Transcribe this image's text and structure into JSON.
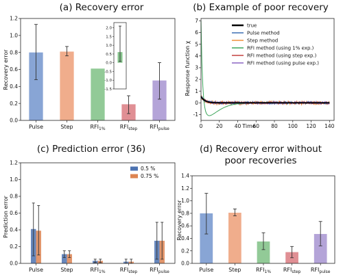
{
  "colors": {
    "pulse": "#7b9bd0",
    "step": "#eea47f",
    "rfi1": "#86c48c",
    "rfistep": "#dd8388",
    "rfipulse": "#ac9ad4",
    "true": "#000000",
    "line_pulse": "#3c6fb4",
    "line_step": "#ef8f3a",
    "line_rfi1": "#3ca55a",
    "line_rfistep": "#c4413f",
    "line_rfipulse": "#8a63c3",
    "pred_a": "#4c72b0",
    "pred_b": "#dd8452"
  },
  "categories": [
    {
      "main": "Pulse",
      "sub": ""
    },
    {
      "main": "Step",
      "sub": ""
    },
    {
      "main": "RFI",
      "sub": "1%"
    },
    {
      "main": "RFI",
      "sub": "step"
    },
    {
      "main": "RFI",
      "sub": "pulse"
    }
  ],
  "chart_data": [
    {
      "id": "a",
      "type": "bar",
      "title": "(a)   Recovery error",
      "ylabel": "Recovery error",
      "ylim": [
        0,
        1.2
      ],
      "yticks": [
        0.0,
        0.2,
        0.4,
        0.6,
        0.8,
        1.0,
        1.2
      ],
      "values": [
        0.8,
        0.81,
        0.61,
        0.19,
        0.47
      ],
      "err_low": [
        0.48,
        0.76,
        null,
        0.08,
        0.25
      ],
      "err_high": [
        1.13,
        0.87,
        null,
        0.29,
        0.68
      ],
      "grid": false,
      "inset": {
        "ylim": [
          -1.5,
          2.3
        ],
        "yticks": [
          -1.5,
          -1.0,
          -0.5,
          0.0,
          0.5,
          1.0,
          1.5,
          2.0
        ],
        "value": 0.61,
        "err_low": 0.08,
        "err_high": 2.1
      }
    },
    {
      "id": "b",
      "type": "line",
      "title": "(b)   Example of poor recovery",
      "xlabel": "Time",
      "ylabel": "Response function χ",
      "xlim": [
        0,
        145
      ],
      "ylim": [
        -1.5,
        7.2
      ],
      "xticks": [
        0,
        20,
        40,
        60,
        80,
        100,
        120,
        140
      ],
      "yticks": [
        -1,
        0,
        1,
        2,
        3,
        4,
        5,
        6,
        7
      ],
      "legend_position": "top-right",
      "series": [
        {
          "name": "true",
          "key": "true"
        },
        {
          "name": "Pulse method",
          "key": "line_pulse"
        },
        {
          "name": "Step method",
          "key": "line_step"
        },
        {
          "name": "RFI method (using 1% exp.)",
          "key": "line_rfi1"
        },
        {
          "name": "RFI method (using step exp.)",
          "key": "line_rfistep"
        },
        {
          "name": "RFI method (using pulse exp.)",
          "key": "line_rfipulse"
        }
      ]
    },
    {
      "id": "c",
      "type": "bar",
      "title": "(c)   Prediction error (36)",
      "ylabel": "Prediction error",
      "ylim": [
        0,
        1.2
      ],
      "yticks": [
        0.0,
        0.2,
        0.4,
        0.6,
        0.8,
        1.0,
        1.2
      ],
      "legend_position": "top-right",
      "series": [
        {
          "name": "0.5 %",
          "values": [
            0.41,
            0.11,
            0.03,
            0.02,
            0.27
          ],
          "err_low": [
            0.09,
            0.07,
            0.01,
            0.0,
            0.05
          ],
          "err_high": [
            0.72,
            0.15,
            0.05,
            0.05,
            0.49
          ]
        },
        {
          "name": "0.75 %",
          "values": [
            0.39,
            0.11,
            0.03,
            0.02,
            0.27
          ],
          "err_low": [
            0.1,
            0.07,
            0.01,
            0.0,
            0.05
          ],
          "err_high": [
            0.69,
            0.15,
            0.05,
            0.05,
            0.49
          ]
        }
      ],
      "grid": false
    },
    {
      "id": "d",
      "type": "bar",
      "title_lines": [
        "(d)   Recovery error without",
        "poor recoveries"
      ],
      "ylabel": "Recovery error",
      "ylim": [
        0,
        1.4
      ],
      "yticks": [
        0.0,
        0.2,
        0.4,
        0.6,
        0.8,
        1.0,
        1.2,
        1.4
      ],
      "values": [
        0.8,
        0.81,
        0.35,
        0.18,
        0.47
      ],
      "err_low": [
        0.47,
        0.76,
        0.22,
        0.09,
        0.28
      ],
      "err_high": [
        1.12,
        0.87,
        0.49,
        0.27,
        0.67
      ],
      "grid": false
    }
  ]
}
